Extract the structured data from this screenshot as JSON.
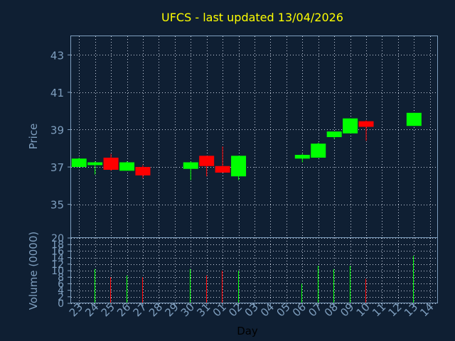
{
  "chart_data": {
    "type": "candlestick",
    "title": "UFCS - last updated 13/04/2026",
    "x_label": "Day",
    "x_ticks": [
      "23",
      "24",
      "25",
      "26",
      "27",
      "28",
      "29",
      "30",
      "31",
      "01",
      "02",
      "03",
      "04",
      "05",
      "06",
      "07",
      "08",
      "09",
      "10",
      "11",
      "12",
      "13",
      "14"
    ],
    "price_panel": {
      "ylabel": "Price",
      "ylim": [
        33.2,
        44
      ],
      "yticks": [
        35,
        37,
        39,
        41,
        43
      ],
      "grid": true
    },
    "volume_panel": {
      "ylabel": "Volume (0000)",
      "ylim": [
        0,
        20
      ],
      "yticks": [
        0,
        2,
        4,
        6,
        8,
        10,
        12,
        14,
        16,
        18,
        20
      ],
      "grid": true
    },
    "colors": {
      "up": "#00ff00",
      "down": "#ff0000",
      "background": "#0f1f33",
      "plot_bg": "#0f1f33",
      "axis_text": "#7f9fbf",
      "title": "#ffff00"
    },
    "candles": [
      {
        "day": "23",
        "open": 37.0,
        "high": 37.5,
        "low": 37.0,
        "close": 37.45,
        "volume": 0
      },
      {
        "day": "24",
        "open": 37.1,
        "high": 37.3,
        "low": 36.6,
        "close": 37.25,
        "volume": 10.5
      },
      {
        "day": "25",
        "open": 37.5,
        "high": 37.7,
        "low": 36.8,
        "close": 36.85,
        "volume": 8.0
      },
      {
        "day": "26",
        "open": 36.8,
        "high": 37.3,
        "low": 36.8,
        "close": 37.25,
        "volume": 8.5
      },
      {
        "day": "27",
        "open": 37.0,
        "high": 37.1,
        "low": 36.4,
        "close": 36.55,
        "volume": 8.0
      },
      {
        "day": "30",
        "open": 36.9,
        "high": 37.3,
        "low": 36.3,
        "close": 37.25,
        "volume": 10.5
      },
      {
        "day": "31",
        "open": 37.6,
        "high": 37.6,
        "low": 36.5,
        "close": 37.05,
        "volume": 8.5
      },
      {
        "day": "01",
        "open": 37.05,
        "high": 38.1,
        "low": 36.7,
        "close": 36.7,
        "volume": 10.0
      },
      {
        "day": "02",
        "open": 36.5,
        "high": 37.6,
        "low": 36.3,
        "close": 37.6,
        "volume": 10.0
      },
      {
        "day": "06",
        "open": 37.45,
        "high": 37.7,
        "low": 37.25,
        "close": 37.65,
        "volume": 6.0
      },
      {
        "day": "07",
        "open": 37.5,
        "high": 38.3,
        "low": 37.5,
        "close": 38.25,
        "volume": 11.5
      },
      {
        "day": "08",
        "open": 38.6,
        "high": 38.9,
        "low": 38.5,
        "close": 38.9,
        "volume": 10.5
      },
      {
        "day": "09",
        "open": 38.8,
        "high": 39.6,
        "low": 38.8,
        "close": 39.6,
        "volume": 11.5
      },
      {
        "day": "10",
        "open": 39.45,
        "high": 39.5,
        "low": 38.4,
        "close": 39.15,
        "volume": 7.5
      },
      {
        "day": "13",
        "open": 39.2,
        "high": 39.9,
        "low": 39.2,
        "close": 39.9,
        "volume": 14.5
      }
    ]
  }
}
